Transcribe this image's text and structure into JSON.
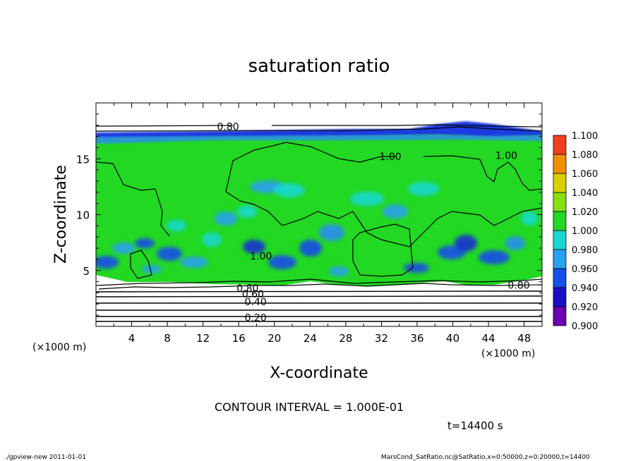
{
  "chart_data": {
    "type": "heatmap",
    "title": "saturation ratio",
    "xlabel": "X-coordinate",
    "ylabel": "Z-coordinate",
    "x_unit": "(×1000 m)",
    "z_unit": "(×1000 m)",
    "xlim": [
      0,
      50
    ],
    "ylim": [
      0,
      20
    ],
    "x_ticks": [
      "4",
      "8",
      "12",
      "16",
      "20",
      "24",
      "28",
      "32",
      "36",
      "40",
      "44",
      "48"
    ],
    "y_ticks": [
      "5",
      "10",
      "15"
    ],
    "colorbar": {
      "levels": [
        "0.900",
        "0.920",
        "0.940",
        "0.960",
        "0.980",
        "1.000",
        "1.020",
        "1.040",
        "1.060",
        "1.080",
        "1.100"
      ],
      "colors": [
        "#6a00b0",
        "#1a10c8",
        "#1550e8",
        "#2aa0f0",
        "#16d8d0",
        "#22d822",
        "#88e010",
        "#d8d000",
        "#f09000",
        "#f04020",
        "#f07878"
      ]
    },
    "contour_labels": [
      {
        "text": "0.80",
        "x": 14.8,
        "z": 17.9
      },
      {
        "text": "1.00",
        "x": 33.0,
        "z": 15.2
      },
      {
        "text": "1.00",
        "x": 46.0,
        "z": 15.3
      },
      {
        "text": "1.00",
        "x": 18.5,
        "z": 6.3
      },
      {
        "text": "0.80",
        "x": 17.0,
        "z": 3.4
      },
      {
        "text": "0.60",
        "x": 17.6,
        "z": 2.9
      },
      {
        "text": "0.40",
        "x": 17.9,
        "z": 2.2
      },
      {
        "text": "0.20",
        "x": 17.9,
        "z": 0.8
      },
      {
        "text": "0.80",
        "x": 47.4,
        "z": 3.7
      }
    ],
    "contour_interval_text": "CONTOUR INTERVAL = 1.000E-01",
    "time_text": "t=14400 s"
  },
  "footer": {
    "left": "./gpview-new   2011-01-01",
    "right": "MarsCond_SatRatio.nc@SatRatio,x=0:50000,z=0:20000,t=14400"
  }
}
